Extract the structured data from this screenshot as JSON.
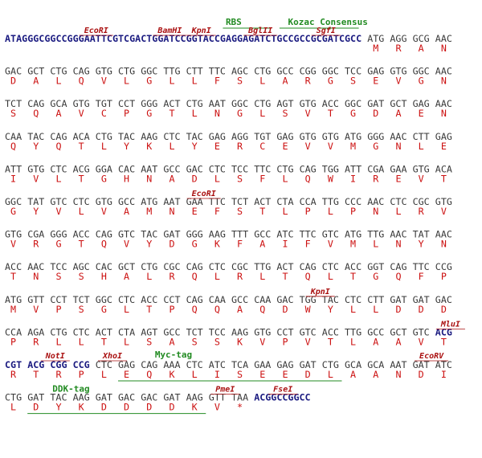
{
  "rows": [
    {
      "lead": "ATAGGGCGGCCGGGAATTCGTCGACTGGATCCGGTACCGAGGAGATCTGCCGCCGCGATCGCC",
      "codons": [
        "ATG",
        "AGG",
        "GCG",
        "AAC"
      ],
      "protein": [
        "M",
        "R",
        "A",
        "N"
      ],
      "annotations": [
        {
          "label": "EcoRI",
          "kind": "enzyme"
        },
        {
          "label": "BamHI",
          "kind": "enzyme"
        },
        {
          "label": "KpnI",
          "kind": "enzyme"
        },
        {
          "label": "RBS",
          "kind": "feature"
        },
        {
          "label": "Kozac Consensus",
          "kind": "feature"
        },
        {
          "label": "BglII",
          "kind": "enzyme"
        },
        {
          "label": "SgfI",
          "kind": "enzyme"
        }
      ]
    },
    {
      "codons": [
        "GAC",
        "GCT",
        "CTG",
        "CAG",
        "GTG",
        "CTG",
        "GGC",
        "TTG",
        "CTT",
        "TTC",
        "AGC",
        "CTG",
        "GCC",
        "CGG",
        "GGC",
        "TCC",
        "GAG",
        "GTG",
        "GGC",
        "AAC"
      ],
      "protein": [
        "D",
        "A",
        "L",
        "Q",
        "V",
        "L",
        "G",
        "L",
        "L",
        "F",
        "S",
        "L",
        "A",
        "R",
        "G",
        "S",
        "E",
        "V",
        "G",
        "N"
      ],
      "annotations": []
    },
    {
      "codons": [
        "TCT",
        "CAG",
        "GCA",
        "GTG",
        "TGT",
        "CCT",
        "GGG",
        "ACT",
        "CTG",
        "AAT",
        "GGC",
        "CTG",
        "AGT",
        "GTG",
        "ACC",
        "GGC",
        "GAT",
        "GCT",
        "GAG",
        "AAC"
      ],
      "protein": [
        "S",
        "Q",
        "A",
        "V",
        "C",
        "P",
        "G",
        "T",
        "L",
        "N",
        "G",
        "L",
        "S",
        "V",
        "T",
        "G",
        "D",
        "A",
        "E",
        "N"
      ],
      "annotations": []
    },
    {
      "codons": [
        "CAA",
        "TAC",
        "CAG",
        "ACA",
        "CTG",
        "TAC",
        "AAG",
        "CTC",
        "TAC",
        "GAG",
        "AGG",
        "TGT",
        "GAG",
        "GTG",
        "GTG",
        "ATG",
        "GGG",
        "AAC",
        "CTT",
        "GAG"
      ],
      "protein": [
        "Q",
        "Y",
        "Q",
        "T",
        "L",
        "Y",
        "K",
        "L",
        "Y",
        "E",
        "R",
        "C",
        "E",
        "V",
        "V",
        "M",
        "G",
        "N",
        "L",
        "E"
      ],
      "annotations": []
    },
    {
      "codons": [
        "ATT",
        "GTG",
        "CTC",
        "ACG",
        "GGA",
        "CAC",
        "AAT",
        "GCC",
        "GAC",
        "CTC",
        "TCC",
        "TTC",
        "CTG",
        "CAG",
        "TGG",
        "ATT",
        "CGA",
        "GAA",
        "GTG",
        "ACA"
      ],
      "protein": [
        "I",
        "V",
        "L",
        "T",
        "G",
        "H",
        "N",
        "A",
        "D",
        "L",
        "S",
        "F",
        "L",
        "Q",
        "W",
        "I",
        "R",
        "E",
        "V",
        "T"
      ],
      "annotations": []
    },
    {
      "codons": [
        "GGC",
        "TAT",
        "GTC",
        "CTC",
        "GTG",
        "GCC",
        "ATG",
        "AAT",
        "GAA",
        "TTC",
        "TCT",
        "ACT",
        "CTA",
        "CCA",
        "TTG",
        "CCC",
        "AAC",
        "CTC",
        "CGC",
        "GTG"
      ],
      "protein": [
        "G",
        "Y",
        "V",
        "L",
        "V",
        "A",
        "M",
        "N",
        "E",
        "F",
        "S",
        "T",
        "L",
        "P",
        "L",
        "P",
        "N",
        "L",
        "R",
        "V"
      ],
      "annotations": [
        {
          "label": "EcoRI",
          "kind": "enzyme"
        }
      ]
    },
    {
      "codons": [
        "GTG",
        "CGA",
        "GGG",
        "ACC",
        "CAG",
        "GTC",
        "TAC",
        "GAT",
        "GGG",
        "AAG",
        "TTT",
        "GCC",
        "ATC",
        "TTC",
        "GTC",
        "ATG",
        "TTG",
        "AAC",
        "TAT",
        "AAC"
      ],
      "protein": [
        "V",
        "R",
        "G",
        "T",
        "Q",
        "V",
        "Y",
        "D",
        "G",
        "K",
        "F",
        "A",
        "I",
        "F",
        "V",
        "M",
        "L",
        "N",
        "Y",
        "N"
      ],
      "annotations": []
    },
    {
      "codons": [
        "ACC",
        "AAC",
        "TCC",
        "AGC",
        "CAC",
        "GCT",
        "CTG",
        "CGC",
        "CAG",
        "CTC",
        "CGC",
        "TTG",
        "ACT",
        "CAG",
        "CTC",
        "ACC",
        "GGT",
        "CAG",
        "TTC",
        "CCG"
      ],
      "protein": [
        "T",
        "N",
        "S",
        "S",
        "H",
        "A",
        "L",
        "R",
        "Q",
        "L",
        "R",
        "L",
        "T",
        "Q",
        "L",
        "T",
        "G",
        "Q",
        "F",
        "P"
      ],
      "annotations": []
    },
    {
      "codons": [
        "ATG",
        "GTT",
        "CCT",
        "TCT",
        "GGC",
        "CTC",
        "ACC",
        "CCT",
        "CAG",
        "CAA",
        "GCC",
        "CAA",
        "GAC",
        "TGG",
        "TAC",
        "CTC",
        "CTT",
        "GAT",
        "GAT",
        "GAC"
      ],
      "protein": [
        "M",
        "V",
        "P",
        "S",
        "G",
        "L",
        "T",
        "P",
        "Q",
        "Q",
        "A",
        "Q",
        "D",
        "W",
        "Y",
        "L",
        "L",
        "D",
        "D",
        "D"
      ],
      "annotations": [
        {
          "label": "KpnI",
          "kind": "enzyme"
        }
      ]
    },
    {
      "codons": [
        "CCA",
        "AGA",
        "CTG",
        "CTC",
        "ACT",
        "CTA",
        "AGT",
        "GCC",
        "TCT",
        "TCC",
        "AAG",
        "GTG",
        "CCT",
        "GTC",
        "ACC",
        "TTG",
        "GCC",
        "GCT",
        "GTC",
        "ACG"
      ],
      "protein": [
        "P",
        "R",
        "L",
        "L",
        "T",
        "L",
        "S",
        "A",
        "S",
        "S",
        "K",
        "V",
        "P",
        "V",
        "T",
        "L",
        "A",
        "A",
        "V",
        "T"
      ],
      "annotations": [
        {
          "label": "MluI",
          "kind": "enzyme"
        }
      ]
    },
    {
      "codons": [
        "CGT",
        "ACG",
        "CGG",
        "CCG",
        "CTC",
        "GAG",
        "CAG",
        "AAA",
        "CTC",
        "ATC",
        "TCA",
        "GAA",
        "GAG",
        "GAT",
        "CTG",
        "GCA",
        "GCA",
        "AAT",
        "GAT",
        "ATC"
      ],
      "protein": [
        "R",
        "T",
        "R",
        "P",
        "L",
        "E",
        "Q",
        "K",
        "L",
        "I",
        "S",
        "E",
        "E",
        "D",
        "L",
        "A",
        "A",
        "N",
        "D",
        "I"
      ],
      "annotations": [
        {
          "label": "NotI",
          "kind": "enzyme"
        },
        {
          "label": "XhoI",
          "kind": "enzyme"
        },
        {
          "label": "Myc-tag",
          "kind": "feature"
        },
        {
          "label": "EcoRV",
          "kind": "enzyme"
        }
      ]
    },
    {
      "codons": [
        "CTG",
        "GAT",
        "TAC",
        "AAG",
        "GAT",
        "GAC",
        "GAC",
        "GAT",
        "AAG",
        "GTT",
        "TAA"
      ],
      "trail": "ACGGCCGGCC",
      "protein": [
        "L",
        "D",
        "Y",
        "K",
        "D",
        "D",
        "D",
        "D",
        "K",
        "V",
        "*"
      ],
      "annotations": [
        {
          "label": "DDK-tag",
          "kind": "feature"
        },
        {
          "label": "PmeI",
          "kind": "enzyme"
        },
        {
          "label": "FseI",
          "kind": "enzyme"
        }
      ]
    }
  ]
}
